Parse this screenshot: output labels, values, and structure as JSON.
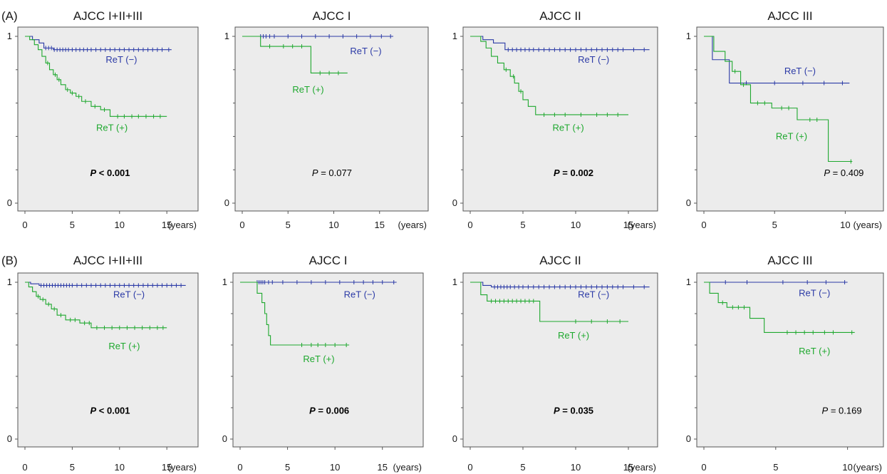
{
  "figure": {
    "rows": [
      {
        "label": "(A)"
      },
      {
        "label": "(B)"
      }
    ],
    "colors": {
      "negative": "#2b3aa6",
      "positive": "#1ea82e",
      "plot_bg": "#ececec",
      "axis": "#555555"
    },
    "y_tick_labels": [
      "0",
      "1"
    ],
    "x_tick_labels": [
      "0",
      "5",
      "10",
      "15"
    ],
    "x_unit": "(years)"
  },
  "chart_data": [
    {
      "type": "line",
      "row": 0,
      "col": 0,
      "title": "AJCC I+II+III",
      "xlim": [
        0,
        18
      ],
      "ylim": [
        0,
        1
      ],
      "p_prefix": "P",
      "p_value": "< 0.001",
      "p_bold": true,
      "series": [
        {
          "name": "ReT (−)",
          "color": "#2b3aa6",
          "steps": [
            [
              0,
              1
            ],
            [
              0.8,
              0.98
            ],
            [
              1.5,
              0.96
            ],
            [
              2,
              0.93
            ],
            [
              3,
              0.92
            ],
            [
              15.5,
              0.92
            ]
          ],
          "censor": [
            2.2,
            2.5,
            2.8,
            3.1,
            3.4,
            3.7,
            4.0,
            4.3,
            4.6,
            5.0,
            5.4,
            5.8,
            6.2,
            6.6,
            7.0,
            7.5,
            8.0,
            8.5,
            9.0,
            9.5,
            10,
            10.5,
            11,
            11.5,
            12,
            12.5,
            13,
            13.5,
            14,
            14.5,
            15.2
          ]
        },
        {
          "name": "ReT (+)",
          "color": "#1ea82e",
          "steps": [
            [
              0,
              1
            ],
            [
              0.5,
              0.98
            ],
            [
              1.0,
              0.95
            ],
            [
              1.4,
              0.92
            ],
            [
              1.8,
              0.88
            ],
            [
              2.2,
              0.84
            ],
            [
              2.6,
              0.8
            ],
            [
              3.0,
              0.77
            ],
            [
              3.4,
              0.74
            ],
            [
              3.8,
              0.71
            ],
            [
              4.3,
              0.68
            ],
            [
              4.8,
              0.66
            ],
            [
              5.4,
              0.64
            ],
            [
              6.0,
              0.61
            ],
            [
              7.0,
              0.58
            ],
            [
              8.0,
              0.56
            ],
            [
              9.0,
              0.52
            ],
            [
              15,
              0.52
            ]
          ],
          "censor": [
            2.4,
            3.2,
            3.6,
            4.5,
            5.0,
            5.7,
            6.4,
            7.4,
            8.4,
            9.8,
            10.5,
            11.3,
            12.0,
            12.8,
            13.6,
            14.3
          ]
        }
      ],
      "annotations": [
        {
          "text": "ReT (−)",
          "series": 0,
          "x": 10.2,
          "y": 0.86
        },
        {
          "text": "ReT (+)",
          "series": 1,
          "x": 9.2,
          "y": 0.45
        }
      ],
      "p_pos": [
        9,
        0.18
      ]
    },
    {
      "type": "line",
      "row": 0,
      "col": 1,
      "title": "AJCC I",
      "xlim": [
        0,
        20
      ],
      "ylim": [
        0,
        1
      ],
      "p_prefix": "P",
      "p_value": "= 0.077",
      "p_bold": false,
      "series": [
        {
          "name": "ReT (−)",
          "color": "#2b3aa6",
          "steps": [
            [
              0,
              1
            ],
            [
              16.5,
              1
            ]
          ],
          "censor": [
            2.0,
            2.3,
            2.6,
            3.0,
            3.5,
            5.0,
            6.5,
            8.0,
            9.5,
            11,
            12.5,
            14,
            15.2,
            16.2
          ]
        },
        {
          "name": "ReT (+)",
          "color": "#1ea82e",
          "steps": [
            [
              0,
              1
            ],
            [
              2,
              0.94
            ],
            [
              7.5,
              0.78
            ],
            [
              11.5,
              0.78
            ]
          ],
          "censor": [
            3.0,
            4.5,
            5.5,
            6.5,
            8.5,
            9.5,
            10.5
          ]
        }
      ],
      "annotations": [
        {
          "text": "ReT (−)",
          "series": 0,
          "x": 13.5,
          "y": 0.91
        },
        {
          "text": "ReT (+)",
          "series": 1,
          "x": 7.2,
          "y": 0.68
        }
      ],
      "p_pos": [
        9.8,
        0.18
      ]
    },
    {
      "type": "line",
      "row": 0,
      "col": 2,
      "title": "AJCC II",
      "xlim": [
        0,
        17.5
      ],
      "ylim": [
        0,
        1
      ],
      "p_prefix": "P",
      "p_value": "= 0.002",
      "p_bold": true,
      "series": [
        {
          "name": "ReT (−)",
          "color": "#2b3aa6",
          "steps": [
            [
              0,
              1
            ],
            [
              1.2,
              0.98
            ],
            [
              2.2,
              0.96
            ],
            [
              3.3,
              0.92
            ],
            [
              17,
              0.92
            ]
          ],
          "censor": [
            3.6,
            4.0,
            4.4,
            4.8,
            5.2,
            5.6,
            6.0,
            6.5,
            7.0,
            7.5,
            8.0,
            8.5,
            9.0,
            9.5,
            10,
            10.5,
            11,
            11.5,
            12,
            12.5,
            13,
            13.5,
            14,
            14.5,
            15.5,
            16.5
          ]
        },
        {
          "name": "ReT (+)",
          "color": "#1ea82e",
          "steps": [
            [
              0,
              1
            ],
            [
              1.0,
              0.97
            ],
            [
              1.5,
              0.93
            ],
            [
              2.0,
              0.88
            ],
            [
              2.6,
              0.84
            ],
            [
              3.2,
              0.8
            ],
            [
              3.8,
              0.76
            ],
            [
              4.2,
              0.72
            ],
            [
              4.6,
              0.67
            ],
            [
              5.0,
              0.62
            ],
            [
              5.5,
              0.58
            ],
            [
              6.2,
              0.53
            ],
            [
              15,
              0.53
            ]
          ],
          "censor": [
            3.4,
            4.1,
            4.8,
            7.0,
            8.0,
            9.0,
            10.5,
            12.0,
            13.0,
            14.0
          ]
        }
      ],
      "annotations": [
        {
          "text": "ReT (−)",
          "series": 0,
          "x": 11.7,
          "y": 0.86
        },
        {
          "text": "ReT (+)",
          "series": 1,
          "x": 9.3,
          "y": 0.45
        }
      ],
      "p_pos": [
        9.8,
        0.18
      ]
    },
    {
      "type": "line",
      "row": 0,
      "col": 3,
      "title": "AJCC III",
      "xlim": [
        0,
        12.5
      ],
      "ylim": [
        0,
        1
      ],
      "p_prefix": "P",
      "p_value": "= 0.409",
      "p_bold": false,
      "series": [
        {
          "name": "ReT (−)",
          "color": "#2b3aa6",
          "steps": [
            [
              0,
              1
            ],
            [
              0.6,
              0.86
            ],
            [
              1.8,
              0.72
            ],
            [
              10.3,
              0.72
            ]
          ],
          "censor": [
            3.0,
            5.0,
            7.0,
            8.5,
            9.8
          ]
        },
        {
          "name": "ReT (+)",
          "color": "#1ea82e",
          "steps": [
            [
              0,
              1
            ],
            [
              0.7,
              0.91
            ],
            [
              1.5,
              0.85
            ],
            [
              2.0,
              0.79
            ],
            [
              2.6,
              0.71
            ],
            [
              3.3,
              0.6
            ],
            [
              4.8,
              0.57
            ],
            [
              6.6,
              0.5
            ],
            [
              8.8,
              0.25
            ],
            [
              10.5,
              0.25
            ]
          ],
          "censor": [
            2.2,
            2.8,
            3.8,
            4.3,
            5.5,
            6.0,
            7.5,
            8.0,
            10.4
          ]
        }
      ],
      "annotations": [
        {
          "text": "ReT (−)",
          "series": 0,
          "x": 6.8,
          "y": 0.79
        },
        {
          "text": "ReT (+)",
          "series": 1,
          "x": 6.2,
          "y": 0.4
        }
      ],
      "p_pos": [
        9.9,
        0.18
      ]
    },
    {
      "type": "line",
      "row": 1,
      "col": 0,
      "title": "AJCC I+II+III",
      "xlim": [
        0,
        18
      ],
      "ylim": [
        0,
        1
      ],
      "p_prefix": "P",
      "p_value": "< 0.001",
      "p_bold": true,
      "series": [
        {
          "name": "ReT (−)",
          "color": "#2b3aa6",
          "steps": [
            [
              0,
              1
            ],
            [
              0.6,
              0.99
            ],
            [
              1.5,
              0.98
            ],
            [
              17,
              0.98
            ]
          ],
          "censor": [
            1.7,
            2.0,
            2.3,
            2.6,
            2.9,
            3.2,
            3.5,
            3.8,
            4.1,
            4.4,
            4.7,
            5.0,
            5.5,
            6.0,
            6.5,
            7.0,
            7.5,
            8.0,
            8.5,
            9.0,
            9.5,
            10,
            10.5,
            11,
            11.5,
            12,
            12.5,
            13,
            13.5,
            14,
            14.5,
            15,
            15.5,
            16,
            16.5
          ]
        },
        {
          "name": "ReT (+)",
          "color": "#1ea82e",
          "steps": [
            [
              0,
              1
            ],
            [
              0.4,
              0.97
            ],
            [
              0.8,
              0.94
            ],
            [
              1.2,
              0.91
            ],
            [
              1.6,
              0.89
            ],
            [
              2.2,
              0.86
            ],
            [
              2.8,
              0.83
            ],
            [
              3.4,
              0.79
            ],
            [
              4.3,
              0.76
            ],
            [
              5.8,
              0.74
            ],
            [
              7.0,
              0.71
            ],
            [
              15,
              0.71
            ]
          ],
          "censor": [
            1.4,
            1.9,
            2.5,
            3.1,
            3.8,
            4.8,
            5.3,
            6.3,
            6.8,
            7.6,
            8.4,
            9.2,
            10.0,
            10.8,
            11.6,
            12.4,
            13.2,
            14.0,
            14.6
          ]
        }
      ],
      "annotations": [
        {
          "text": "ReT (−)",
          "series": 0,
          "x": 11,
          "y": 0.92
        },
        {
          "text": "ReT (+)",
          "series": 1,
          "x": 10.5,
          "y": 0.59
        }
      ],
      "p_pos": [
        9,
        0.18
      ]
    },
    {
      "type": "line",
      "row": 1,
      "col": 1,
      "title": "AJCC I",
      "xlim": [
        0,
        19
      ],
      "ylim": [
        0,
        1
      ],
      "p_prefix": "P",
      "p_value": "= 0.006",
      "p_bold": true,
      "series": [
        {
          "name": "ReT (−)",
          "color": "#2b3aa6",
          "steps": [
            [
              0,
              1
            ],
            [
              16.5,
              1
            ]
          ],
          "censor": [
            1.8,
            2.0,
            2.2,
            2.4,
            2.6,
            3.0,
            3.4,
            4.5,
            6.0,
            7.5,
            9.0,
            10.5,
            12,
            13,
            14,
            15,
            16.2
          ]
        },
        {
          "name": "ReT (+)",
          "color": "#1ea82e",
          "steps": [
            [
              0,
              1
            ],
            [
              1.8,
              0.93
            ],
            [
              2.3,
              0.87
            ],
            [
              2.6,
              0.8
            ],
            [
              2.8,
              0.73
            ],
            [
              3.0,
              0.66
            ],
            [
              3.2,
              0.6
            ],
            [
              11.5,
              0.6
            ]
          ],
          "censor": [
            6.5,
            7.5,
            8.2,
            9.0,
            10.0,
            11.2
          ]
        }
      ],
      "annotations": [
        {
          "text": "ReT (−)",
          "series": 0,
          "x": 12.6,
          "y": 0.92
        },
        {
          "text": "ReT (+)",
          "series": 1,
          "x": 8.3,
          "y": 0.51
        }
      ],
      "p_pos": [
        9.4,
        0.18
      ]
    },
    {
      "type": "line",
      "row": 1,
      "col": 2,
      "title": "AJCC II",
      "xlim": [
        0,
        17.5
      ],
      "ylim": [
        0,
        1
      ],
      "p_prefix": "P",
      "p_value": "= 0.035",
      "p_bold": true,
      "series": [
        {
          "name": "ReT (−)",
          "color": "#2b3aa6",
          "steps": [
            [
              0,
              1
            ],
            [
              1.2,
              0.98
            ],
            [
              2.0,
              0.97
            ],
            [
              17,
              0.97
            ]
          ],
          "censor": [
            2.3,
            2.6,
            2.9,
            3.2,
            3.5,
            3.8,
            4.2,
            4.6,
            5.0,
            5.5,
            6.0,
            6.5,
            7.0,
            7.5,
            8.0,
            8.5,
            9.0,
            9.5,
            10,
            10.5,
            11,
            11.5,
            12,
            12.5,
            13,
            13.5,
            14,
            14.5,
            15.5,
            16.5
          ]
        },
        {
          "name": "ReT (+)",
          "color": "#1ea82e",
          "steps": [
            [
              0,
              1
            ],
            [
              1.0,
              0.92
            ],
            [
              1.6,
              0.88
            ],
            [
              6.6,
              0.75
            ],
            [
              15,
              0.75
            ]
          ],
          "censor": [
            2.0,
            2.4,
            2.8,
            3.2,
            3.6,
            4.0,
            4.4,
            4.8,
            5.2,
            5.6,
            6.0,
            10.0,
            11.5,
            13.0,
            14.2
          ]
        }
      ],
      "annotations": [
        {
          "text": "ReT (−)",
          "series": 0,
          "x": 11.7,
          "y": 0.92
        },
        {
          "text": "ReT (+)",
          "series": 1,
          "x": 9.8,
          "y": 0.66
        }
      ],
      "p_pos": [
        9.8,
        0.18
      ]
    },
    {
      "type": "line",
      "row": 1,
      "col": 3,
      "title": "AJCC III",
      "xlim": [
        0,
        12.3
      ],
      "ylim": [
        0,
        1
      ],
      "p_prefix": "P",
      "p_value": "= 0.169",
      "p_bold": false,
      "series": [
        {
          "name": "ReT (−)",
          "color": "#2b3aa6",
          "steps": [
            [
              0,
              1
            ],
            [
              10,
              1
            ]
          ],
          "censor": [
            1.5,
            3.0,
            5.5,
            7.2,
            8.5,
            9.8
          ]
        },
        {
          "name": "ReT (+)",
          "color": "#1ea82e",
          "steps": [
            [
              0,
              1
            ],
            [
              0.4,
              0.93
            ],
            [
              1.0,
              0.87
            ],
            [
              1.6,
              0.84
            ],
            [
              3.2,
              0.77
            ],
            [
              4.2,
              0.68
            ],
            [
              10.5,
              0.68
            ]
          ],
          "censor": [
            1.3,
            2.0,
            2.4,
            2.8,
            5.8,
            6.4,
            7.0,
            7.6,
            8.4,
            9.0,
            10.3
          ]
        }
      ],
      "annotations": [
        {
          "text": "ReT (−)",
          "series": 0,
          "x": 7.7,
          "y": 0.93
        },
        {
          "text": "ReT (+)",
          "series": 1,
          "x": 7.7,
          "y": 0.56
        }
      ],
      "p_pos": [
        9.6,
        0.18
      ]
    }
  ]
}
